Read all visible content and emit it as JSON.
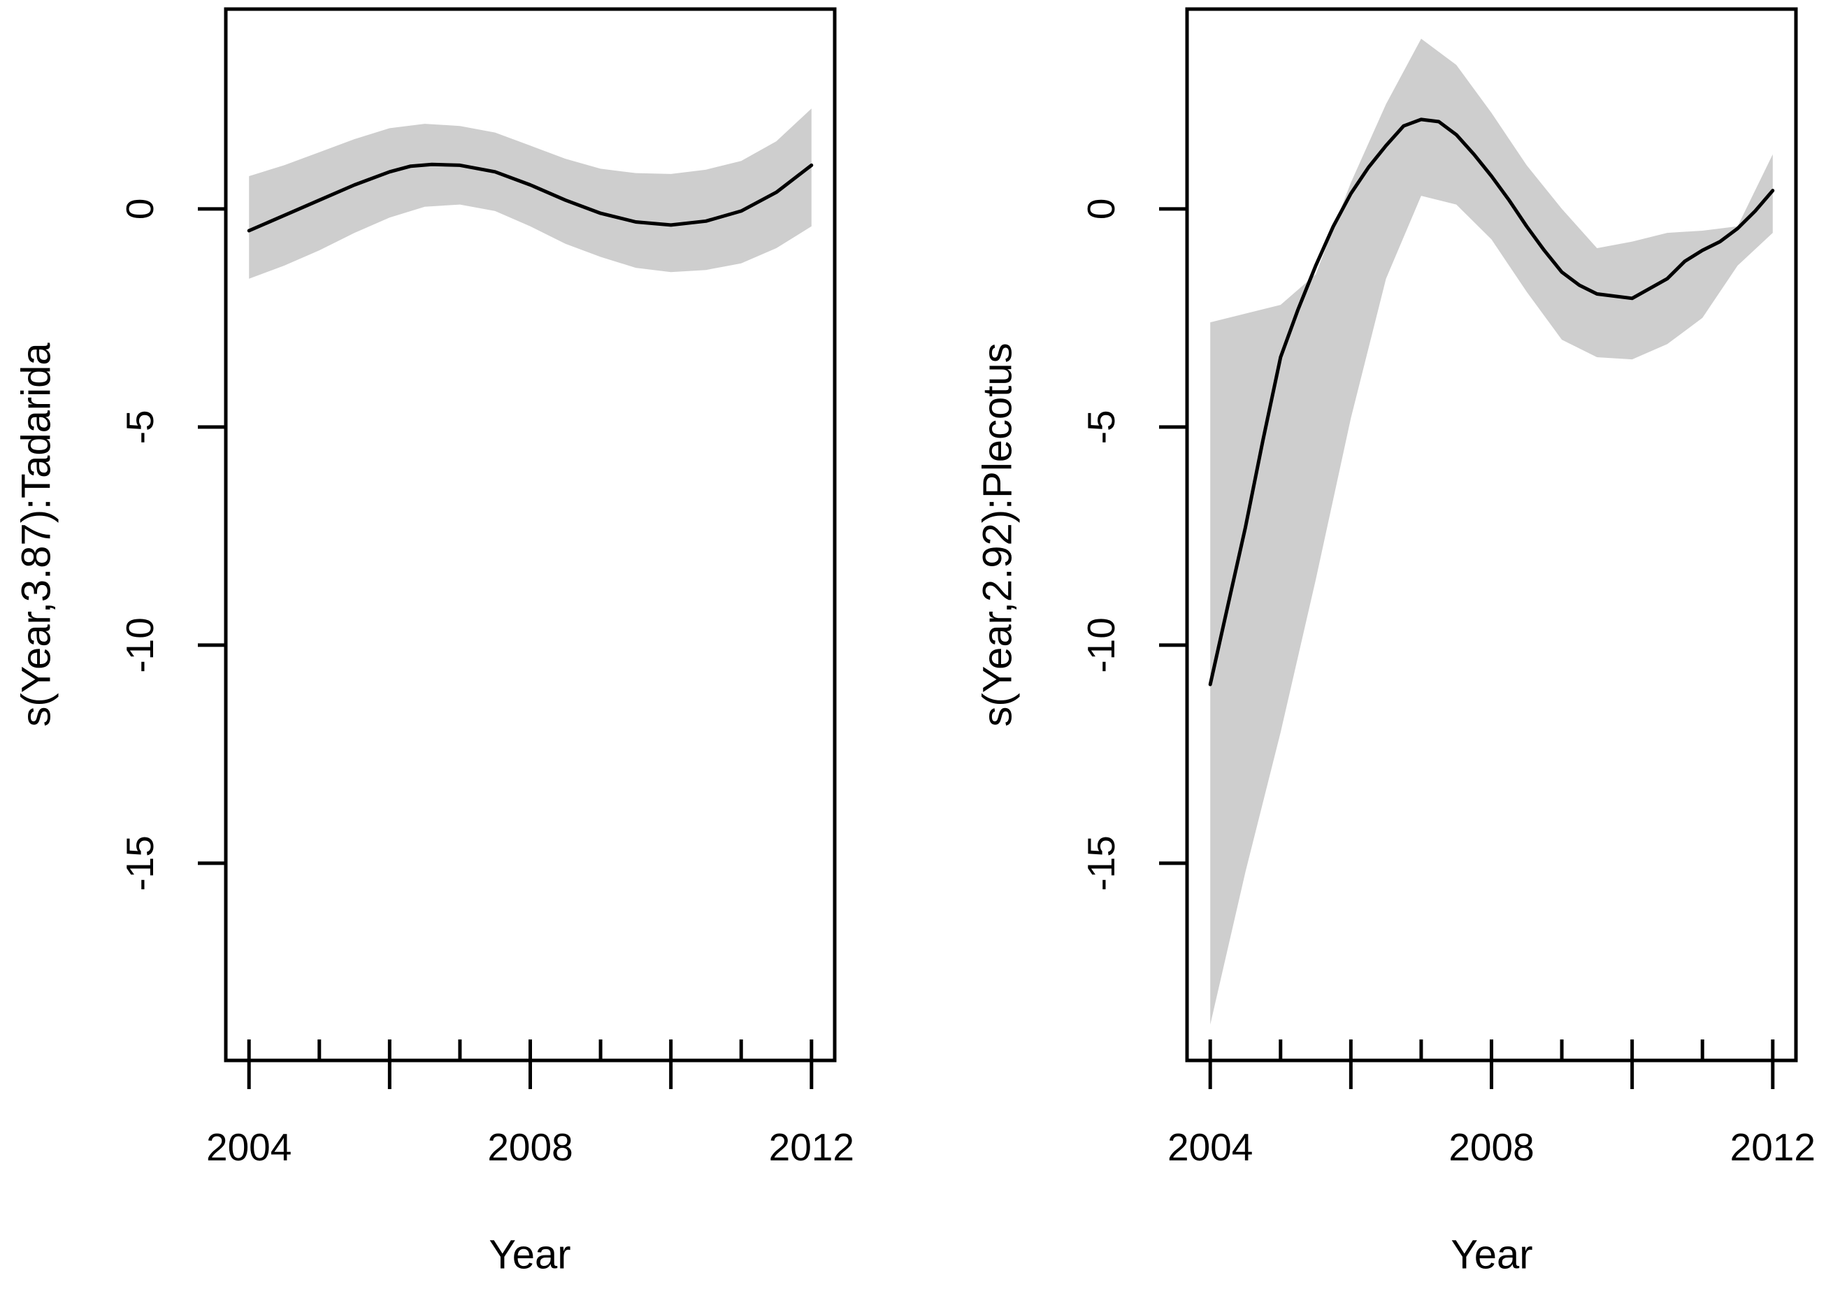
{
  "figure": {
    "background": "#ffffff",
    "description": "Two GAM smooth term plots of Year effects for two bat genera, with mean smooth line and gray confidence band"
  },
  "colors": {
    "band": "#cecece",
    "line": "#000000",
    "axis": "#000000",
    "text": "#000000"
  },
  "chart_data": [
    {
      "type": "line",
      "title": "",
      "ylabel": "s(Year,3.87):Tadarida",
      "xlabel": "Year",
      "xlim": [
        2003.67,
        2012.33
      ],
      "ylim": [
        -19.52,
        4.58
      ],
      "grid": false,
      "legend": false,
      "x_ticks_labeled": [
        {
          "x": 2004,
          "label": "2004"
        },
        {
          "x": 2008,
          "label": "2008"
        },
        {
          "x": 2012,
          "label": "2012"
        }
      ],
      "x_ticks_major": [
        2004,
        2006,
        2008,
        2010,
        2012
      ],
      "x_ticks_minor": [
        2004,
        2005,
        2006,
        2007,
        2008,
        2009,
        2010,
        2011,
        2012
      ],
      "y_ticks": [
        {
          "v": 0,
          "label": "0"
        },
        {
          "v": -5,
          "label": "-5"
        },
        {
          "v": -10,
          "label": "-10"
        },
        {
          "v": -15,
          "label": "-15"
        }
      ],
      "series": [
        {
          "name": "ci-band",
          "type": "band",
          "color": "#cecece",
          "points": [
            [
              2004,
              -1.6,
              0.75
            ],
            [
              2004.5,
              -1.3,
              1.0
            ],
            [
              2005,
              -0.95,
              1.3
            ],
            [
              2005.5,
              -0.55,
              1.6
            ],
            [
              2006,
              -0.2,
              1.85
            ],
            [
              2006.5,
              0.05,
              1.95
            ],
            [
              2007,
              0.1,
              1.9
            ],
            [
              2007.5,
              -0.05,
              1.75
            ],
            [
              2008,
              -0.4,
              1.45
            ],
            [
              2008.5,
              -0.8,
              1.15
            ],
            [
              2009,
              -1.1,
              0.92
            ],
            [
              2009.5,
              -1.35,
              0.82
            ],
            [
              2010,
              -1.45,
              0.8
            ],
            [
              2010.5,
              -1.4,
              0.9
            ],
            [
              2011,
              -1.25,
              1.1
            ],
            [
              2011.5,
              -0.9,
              1.55
            ],
            [
              2012,
              -0.4,
              2.3
            ]
          ]
        },
        {
          "name": "smooth",
          "type": "line",
          "color": "#000000",
          "points": [
            [
              2004,
              -0.5
            ],
            [
              2004.5,
              -0.15
            ],
            [
              2005,
              0.2
            ],
            [
              2005.5,
              0.55
            ],
            [
              2006,
              0.85
            ],
            [
              2006.3,
              0.98
            ],
            [
              2006.6,
              1.02
            ],
            [
              2007,
              1.0
            ],
            [
              2007.5,
              0.85
            ],
            [
              2008,
              0.55
            ],
            [
              2008.5,
              0.2
            ],
            [
              2009,
              -0.1
            ],
            [
              2009.5,
              -0.3
            ],
            [
              2010,
              -0.37
            ],
            [
              2010.5,
              -0.28
            ],
            [
              2011,
              -0.05
            ],
            [
              2011.5,
              0.38
            ],
            [
              2012,
              1.0
            ]
          ]
        }
      ]
    },
    {
      "type": "line",
      "title": "",
      "ylabel": "s(Year,2.92):Plecotus",
      "xlabel": "Year",
      "xlim": [
        2003.67,
        2012.33
      ],
      "ylim": [
        -19.52,
        4.58
      ],
      "grid": false,
      "legend": false,
      "x_ticks_labeled": [
        {
          "x": 2004,
          "label": "2004"
        },
        {
          "x": 2008,
          "label": "2008"
        },
        {
          "x": 2012,
          "label": "2012"
        }
      ],
      "x_ticks_major": [
        2004,
        2006,
        2008,
        2010,
        2012
      ],
      "x_ticks_minor": [
        2004,
        2005,
        2006,
        2007,
        2008,
        2009,
        2010,
        2011,
        2012
      ],
      "y_ticks": [
        {
          "v": 0,
          "label": "0"
        },
        {
          "v": -5,
          "label": "-5"
        },
        {
          "v": -10,
          "label": "-10"
        },
        {
          "v": -15,
          "label": "-15"
        }
      ],
      "series": [
        {
          "name": "ci-band",
          "type": "band",
          "color": "#cecece",
          "points": [
            [
              2004,
              -18.7,
              -2.6
            ],
            [
              2004.5,
              -15.2,
              -2.4
            ],
            [
              2005,
              -12.0,
              -2.2
            ],
            [
              2005.5,
              -8.5,
              -1.5
            ],
            [
              2006,
              -4.8,
              0.6
            ],
            [
              2006.5,
              -1.6,
              2.4
            ],
            [
              2007,
              0.3,
              3.9
            ],
            [
              2007.5,
              0.1,
              3.3
            ],
            [
              2008,
              -0.7,
              2.2
            ],
            [
              2008.5,
              -1.9,
              1.0
            ],
            [
              2009,
              -3.0,
              0.0
            ],
            [
              2009.5,
              -3.4,
              -0.9
            ],
            [
              2010,
              -3.45,
              -0.75
            ],
            [
              2010.5,
              -3.1,
              -0.55
            ],
            [
              2011,
              -2.5,
              -0.5
            ],
            [
              2011.5,
              -1.3,
              -0.4
            ],
            [
              2012,
              -0.55,
              1.25
            ]
          ]
        },
        {
          "name": "smooth",
          "type": "line",
          "color": "#000000",
          "points": [
            [
              2004,
              -10.9
            ],
            [
              2004.25,
              -9.1
            ],
            [
              2004.5,
              -7.3
            ],
            [
              2004.75,
              -5.3
            ],
            [
              2005,
              -3.4
            ],
            [
              2005.25,
              -2.3
            ],
            [
              2005.5,
              -1.3
            ],
            [
              2005.75,
              -0.4
            ],
            [
              2006,
              0.35
            ],
            [
              2006.25,
              0.95
            ],
            [
              2006.5,
              1.45
            ],
            [
              2006.75,
              1.9
            ],
            [
              2007,
              2.05
            ],
            [
              2007.25,
              2.0
            ],
            [
              2007.5,
              1.7
            ],
            [
              2007.75,
              1.25
            ],
            [
              2008,
              0.75
            ],
            [
              2008.25,
              0.2
            ],
            [
              2008.5,
              -0.4
            ],
            [
              2008.75,
              -0.95
            ],
            [
              2009,
              -1.45
            ],
            [
              2009.25,
              -1.75
            ],
            [
              2009.5,
              -1.95
            ],
            [
              2010,
              -2.05
            ],
            [
              2010.5,
              -1.6
            ],
            [
              2010.75,
              -1.2
            ],
            [
              2011,
              -0.95
            ],
            [
              2011.25,
              -0.75
            ],
            [
              2011.5,
              -0.45
            ],
            [
              2011.75,
              -0.05
            ],
            [
              2012,
              0.42
            ]
          ]
        }
      ]
    }
  ]
}
